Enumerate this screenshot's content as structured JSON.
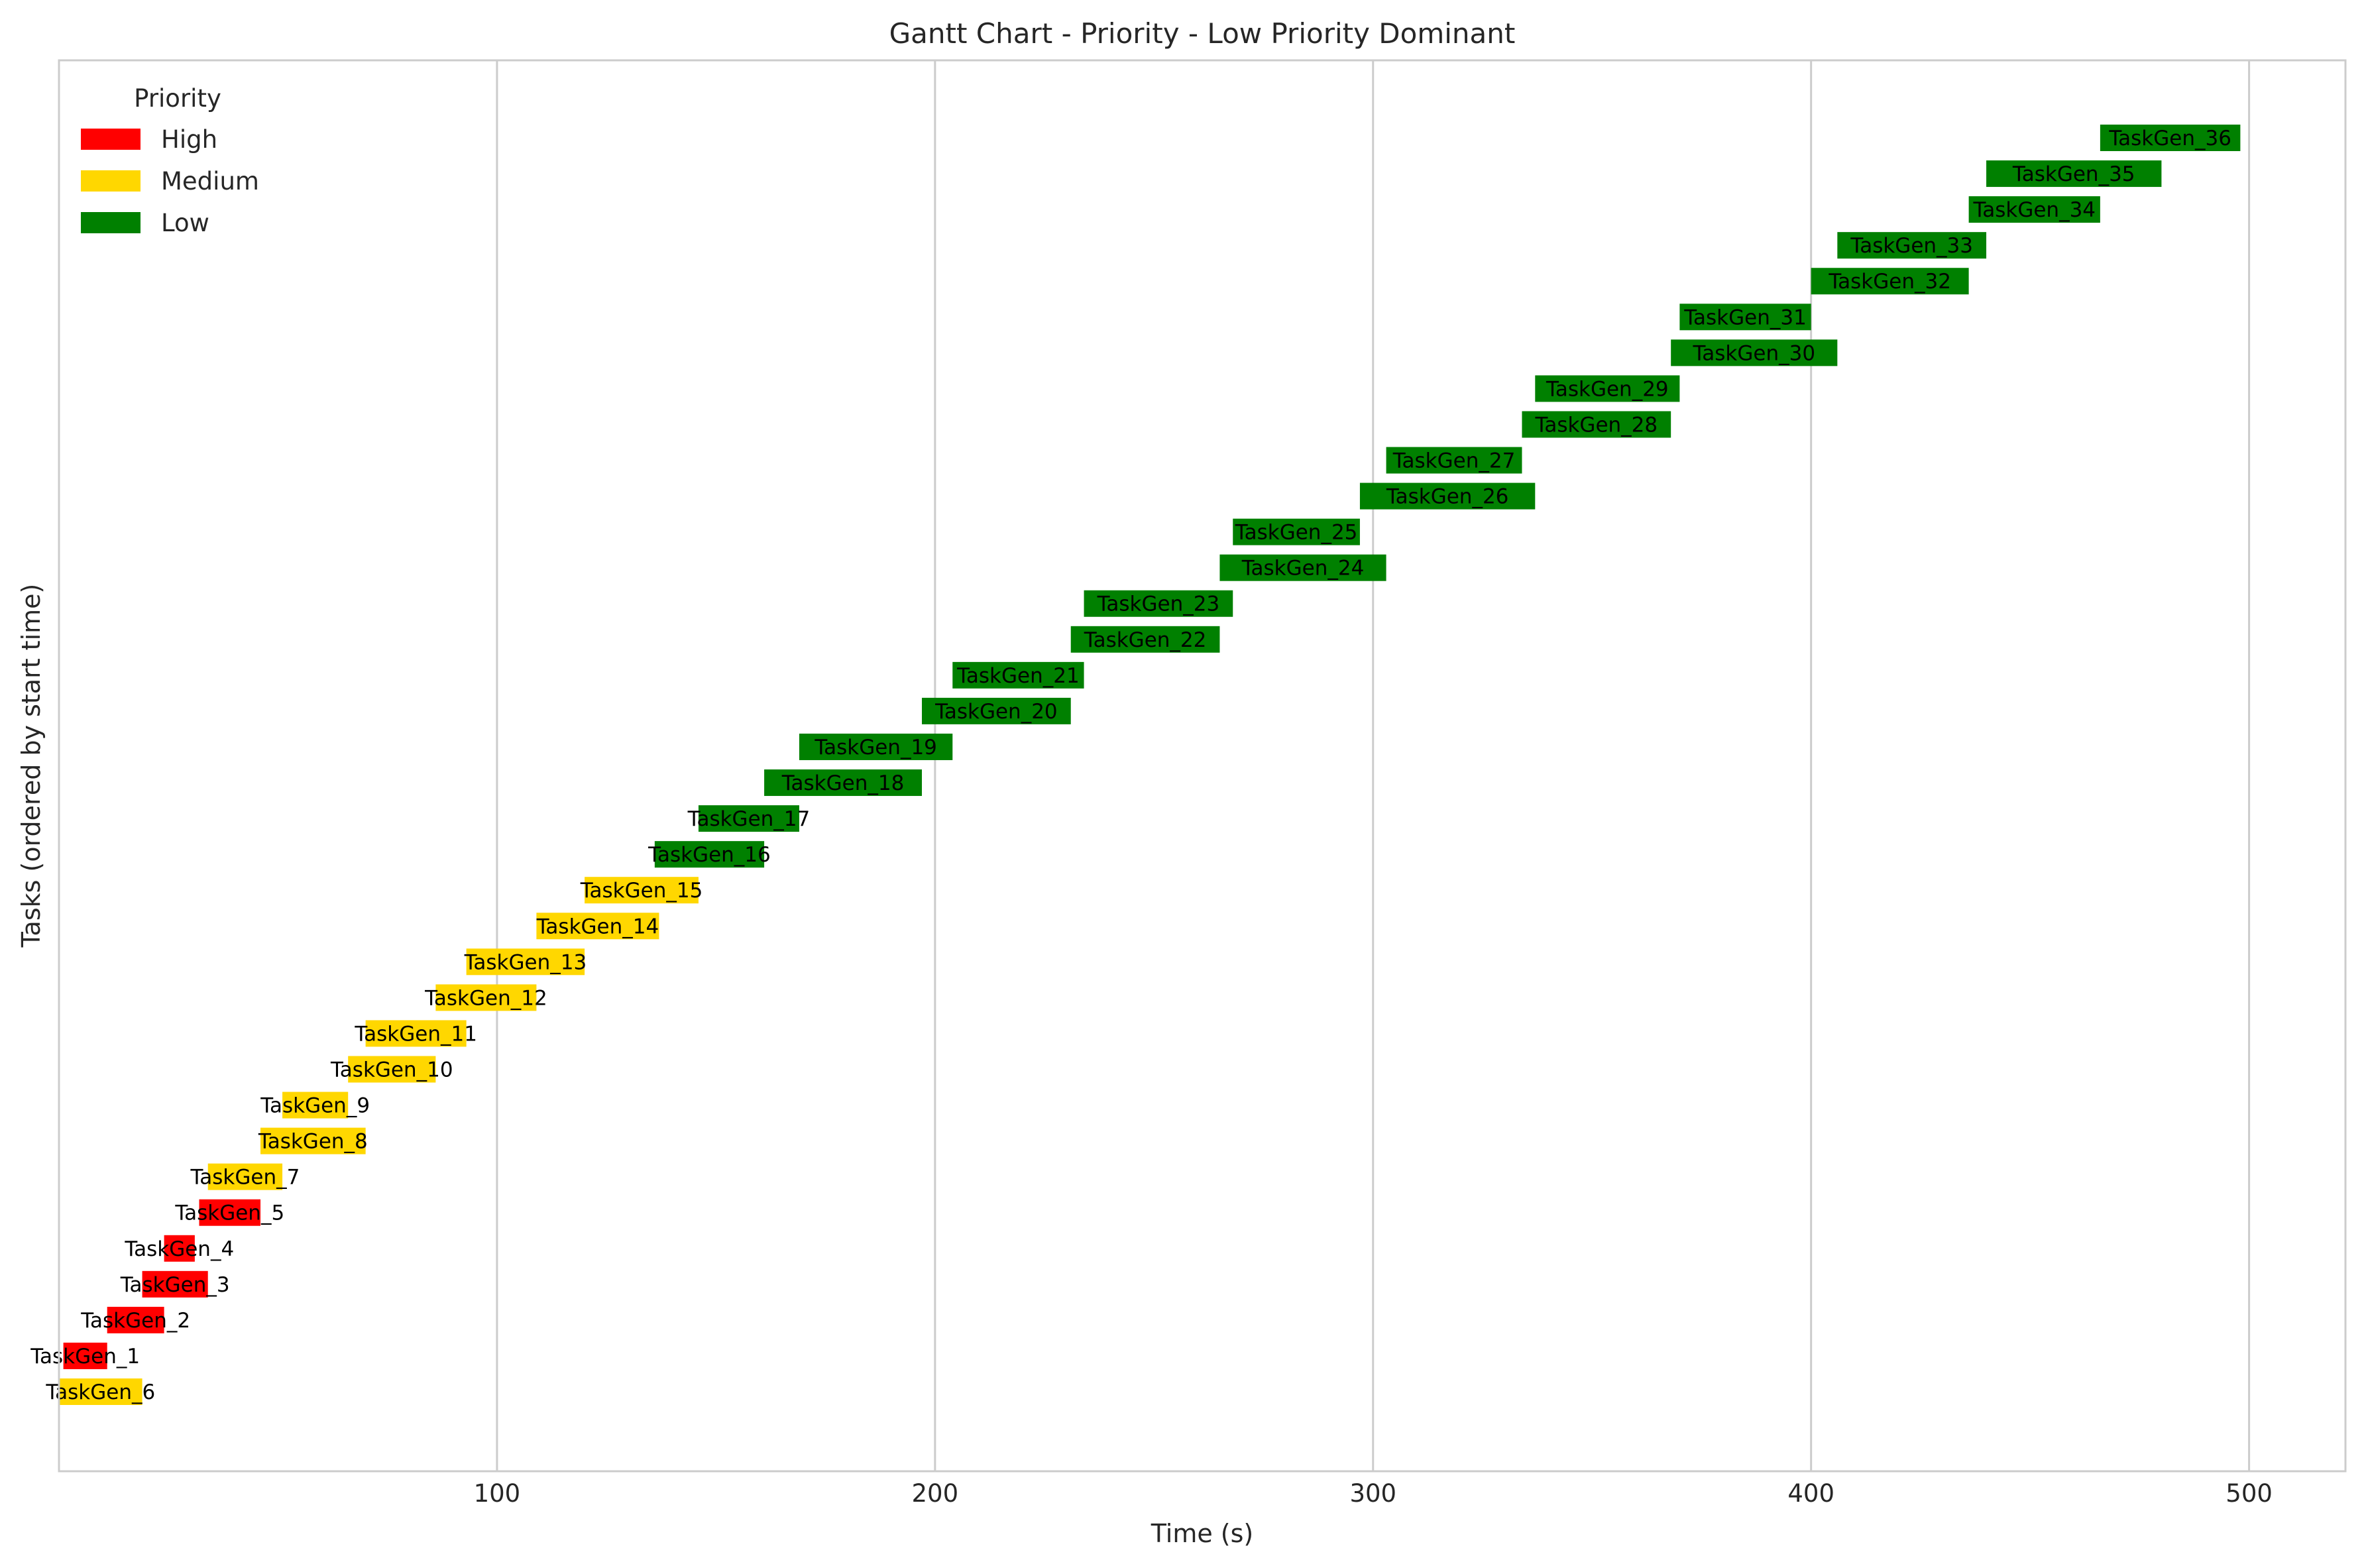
{
  "chart_data": {
    "type": "gantt",
    "title": "Gantt Chart - Priority - Low Priority Dominant",
    "xlabel": "Time (s)",
    "ylabel": "Tasks (ordered by start time)",
    "xlim": [
      0,
      522
    ],
    "xticks": [
      100,
      200,
      300,
      400,
      500
    ],
    "grid": "vertical",
    "legend": {
      "title": "Priority",
      "placement": "top-left",
      "entries": [
        {
          "label": "High",
          "color": "#ff0000"
        },
        {
          "label": "Medium",
          "color": "#ffd700"
        },
        {
          "label": "Low",
          "color": "#008000"
        }
      ]
    },
    "tasks": [
      {
        "name": "TaskGen_6",
        "start": 0,
        "end": 19,
        "priority": "Medium"
      },
      {
        "name": "TaskGen_1",
        "start": 1,
        "end": 11,
        "priority": "High"
      },
      {
        "name": "TaskGen_2",
        "start": 11,
        "end": 24,
        "priority": "High"
      },
      {
        "name": "TaskGen_3",
        "start": 19,
        "end": 34,
        "priority": "High"
      },
      {
        "name": "TaskGen_4",
        "start": 24,
        "end": 31,
        "priority": "High"
      },
      {
        "name": "TaskGen_5",
        "start": 32,
        "end": 46,
        "priority": "High"
      },
      {
        "name": "TaskGen_7",
        "start": 34,
        "end": 51,
        "priority": "Medium"
      },
      {
        "name": "TaskGen_8",
        "start": 46,
        "end": 70,
        "priority": "Medium"
      },
      {
        "name": "TaskGen_9",
        "start": 51,
        "end": 66,
        "priority": "Medium"
      },
      {
        "name": "TaskGen_10",
        "start": 66,
        "end": 86,
        "priority": "Medium"
      },
      {
        "name": "TaskGen_11",
        "start": 70,
        "end": 93,
        "priority": "Medium"
      },
      {
        "name": "TaskGen_12",
        "start": 86,
        "end": 109,
        "priority": "Medium"
      },
      {
        "name": "TaskGen_13",
        "start": 93,
        "end": 120,
        "priority": "Medium"
      },
      {
        "name": "TaskGen_14",
        "start": 109,
        "end": 137,
        "priority": "Medium"
      },
      {
        "name": "TaskGen_15",
        "start": 120,
        "end": 146,
        "priority": "Medium"
      },
      {
        "name": "TaskGen_16",
        "start": 136,
        "end": 161,
        "priority": "Low"
      },
      {
        "name": "TaskGen_17",
        "start": 146,
        "end": 169,
        "priority": "Low"
      },
      {
        "name": "TaskGen_18",
        "start": 161,
        "end": 197,
        "priority": "Low"
      },
      {
        "name": "TaskGen_19",
        "start": 169,
        "end": 204,
        "priority": "Low"
      },
      {
        "name": "TaskGen_20",
        "start": 197,
        "end": 231,
        "priority": "Low"
      },
      {
        "name": "TaskGen_21",
        "start": 204,
        "end": 234,
        "priority": "Low"
      },
      {
        "name": "TaskGen_22",
        "start": 231,
        "end": 265,
        "priority": "Low"
      },
      {
        "name": "TaskGen_23",
        "start": 234,
        "end": 268,
        "priority": "Low"
      },
      {
        "name": "TaskGen_24",
        "start": 265,
        "end": 303,
        "priority": "Low"
      },
      {
        "name": "TaskGen_25",
        "start": 268,
        "end": 297,
        "priority": "Low"
      },
      {
        "name": "TaskGen_26",
        "start": 297,
        "end": 337,
        "priority": "Low"
      },
      {
        "name": "TaskGen_27",
        "start": 303,
        "end": 334,
        "priority": "Low"
      },
      {
        "name": "TaskGen_28",
        "start": 334,
        "end": 368,
        "priority": "Low"
      },
      {
        "name": "TaskGen_29",
        "start": 337,
        "end": 370,
        "priority": "Low"
      },
      {
        "name": "TaskGen_30",
        "start": 368,
        "end": 406,
        "priority": "Low"
      },
      {
        "name": "TaskGen_31",
        "start": 370,
        "end": 400,
        "priority": "Low"
      },
      {
        "name": "TaskGen_32",
        "start": 400,
        "end": 436,
        "priority": "Low"
      },
      {
        "name": "TaskGen_33",
        "start": 406,
        "end": 440,
        "priority": "Low"
      },
      {
        "name": "TaskGen_34",
        "start": 436,
        "end": 466,
        "priority": "Low"
      },
      {
        "name": "TaskGen_35",
        "start": 440,
        "end": 480,
        "priority": "Low"
      },
      {
        "name": "TaskGen_36",
        "start": 466,
        "end": 498,
        "priority": "Low"
      }
    ]
  }
}
